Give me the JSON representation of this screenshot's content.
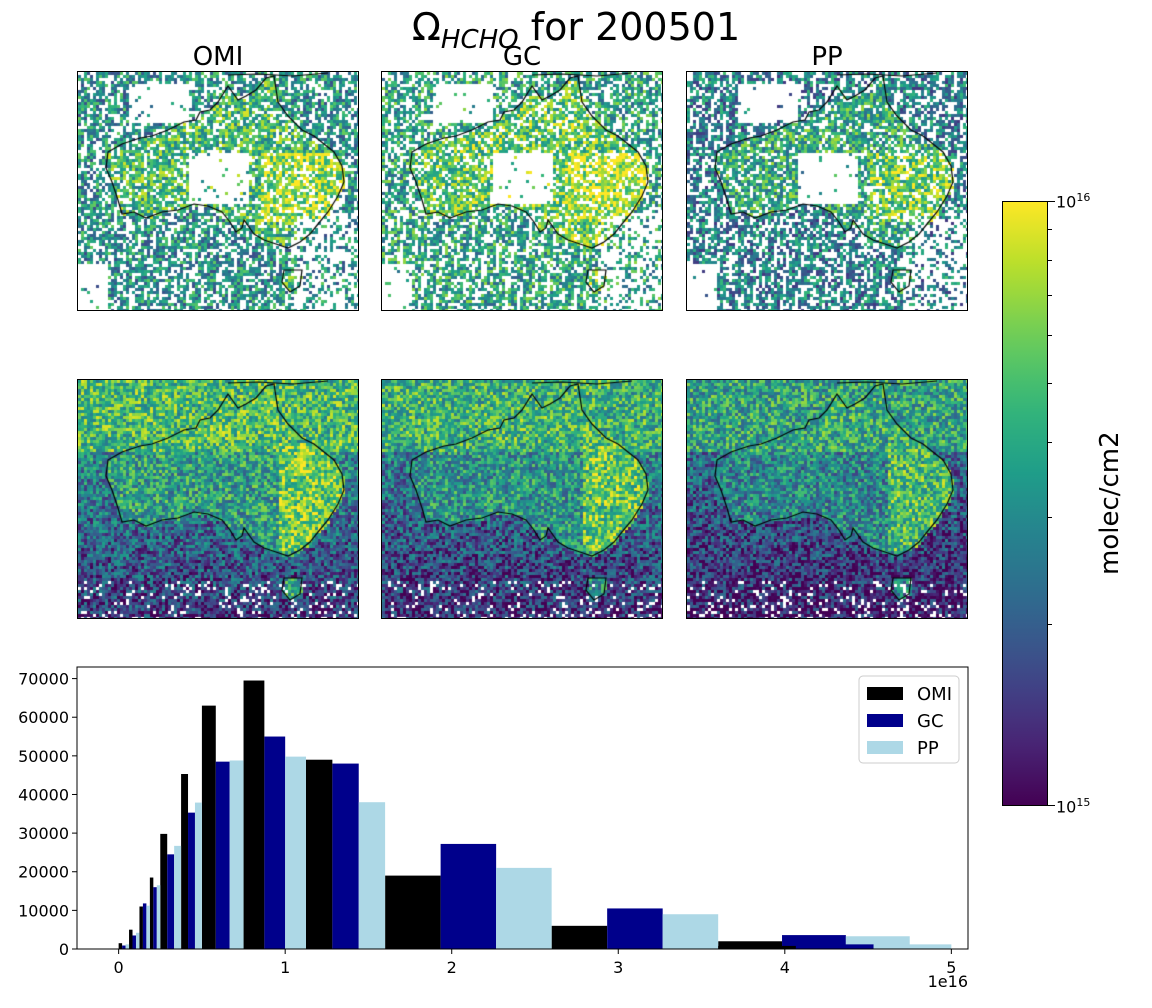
{
  "figure": {
    "title_prefix": "Ω",
    "title_sub": "HCHO",
    "title_suffix": " for 200501",
    "column_titles": [
      "OMI",
      "GC",
      "PP"
    ]
  },
  "colorbar": {
    "label": "molec/cm2",
    "max_base": "10",
    "max_exp": "16",
    "min_base": "10",
    "min_exp": "15",
    "colormap": "viridis"
  },
  "chart_data": {
    "type": "bar",
    "title": "",
    "xlabel": "",
    "ylabel": "",
    "x_offset_text": "1e16",
    "xlim": [
      -0.25,
      5.1
    ],
    "ylim": [
      0,
      73000
    ],
    "xticks": [
      0,
      1,
      2,
      3,
      4,
      5
    ],
    "yticks": [
      0,
      10000,
      20000,
      30000,
      40000,
      50000,
      60000,
      70000
    ],
    "grid": false,
    "legend_position": "top-right",
    "bin_edges": [
      0.0,
      0.0625,
      0.125,
      0.1875,
      0.25,
      0.375,
      0.5,
      0.75,
      1.125,
      1.6,
      2.6,
      3.6,
      4.75
    ],
    "series": [
      {
        "name": "OMI",
        "color": "#000000",
        "values": [
          1500,
          5000,
          11000,
          18500,
          29800,
          45300,
          63000,
          69500,
          49000,
          19000,
          6000,
          2000
        ]
      },
      {
        "name": "GC",
        "color": "#00008b",
        "values": [
          900,
          3500,
          11800,
          16000,
          24500,
          35300,
          48500,
          55000,
          48000,
          27200,
          10500,
          3600
        ]
      },
      {
        "name": "PP",
        "color": "#add8e6",
        "values": [
          1200,
          4200,
          11200,
          16500,
          26700,
          37900,
          48800,
          49800,
          38000,
          21000,
          9000,
          3300
        ]
      }
    ],
    "extra_bins": [
      {
        "x_start": 3.6,
        "x_end": 5.0,
        "OMI": 800,
        "GC": 1200,
        "PP": 1200
      }
    ]
  }
}
